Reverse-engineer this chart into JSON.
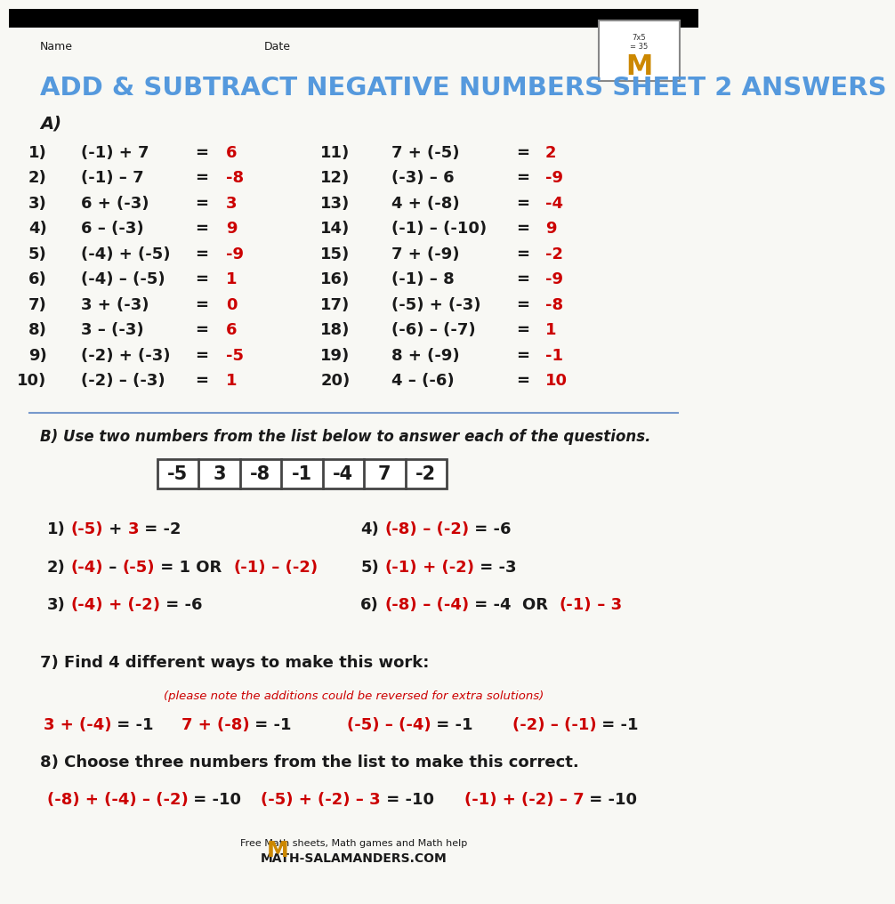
{
  "title": "ADD & SUBTRACT NEGATIVE NUMBERS SHEET 2 ANSWERS",
  "title_color": "#5599dd",
  "bg_color": "#f8f8f4",
  "black": "#1a1a1a",
  "red": "#cc0000",
  "blue_line": "#7799cc",
  "left_problems": [
    [
      "1)",
      "(-1) + 7",
      "6"
    ],
    [
      "2)",
      "(-1) – 7",
      "-8"
    ],
    [
      "3)",
      "6 + (-3)",
      "3"
    ],
    [
      "4)",
      "6 – (-3)",
      "9"
    ],
    [
      "5)",
      "(-4) + (-5)",
      "-9"
    ],
    [
      "6)",
      "(-4) – (-5)",
      "1"
    ],
    [
      "7)",
      "3 + (-3)",
      "0"
    ],
    [
      "8)",
      "3 – (-3)",
      "6"
    ],
    [
      "9)",
      "(-2) + (-3)",
      "-5"
    ],
    [
      "10)",
      "(-2) – (-3)",
      "1"
    ]
  ],
  "right_problems": [
    [
      "11)",
      "7 + (-5)",
      "2"
    ],
    [
      "12)",
      "(-3) – 6",
      "-9"
    ],
    [
      "13)",
      "4 + (-8)",
      "-4"
    ],
    [
      "14)",
      "(-1) – (-10)",
      "9"
    ],
    [
      "15)",
      "7 + (-9)",
      "-2"
    ],
    [
      "16)",
      "(-1) – 8",
      "-9"
    ],
    [
      "17)",
      "(-5) + (-3)",
      "-8"
    ],
    [
      "18)",
      "(-6) – (-7)",
      "1"
    ],
    [
      "19)",
      "8 + (-9)",
      "-1"
    ],
    [
      "20)",
      "4 – (-6)",
      "10"
    ]
  ],
  "number_list": [
    "-5",
    "3",
    "-8",
    "-1",
    "-4",
    "7",
    "-2"
  ]
}
